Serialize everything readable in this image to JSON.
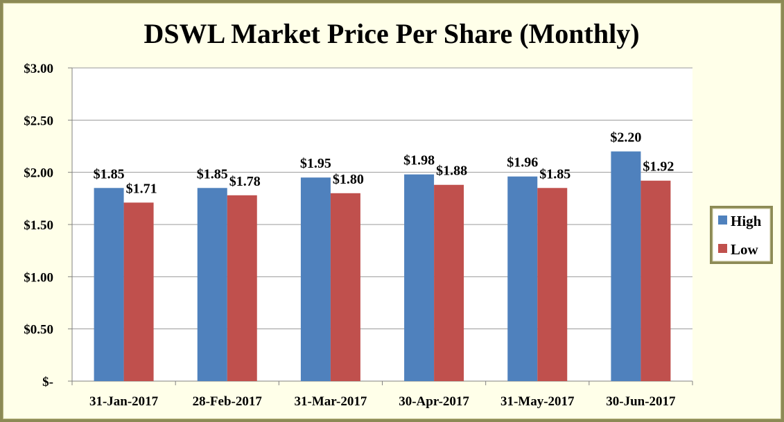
{
  "chart_data": {
    "type": "bar",
    "title": "DSWL Market Price Per Share (Monthly)",
    "xlabel": "",
    "ylabel": "",
    "categories": [
      "31-Jan-2017",
      "28-Feb-2017",
      "31-Mar-2017",
      "30-Apr-2017",
      "31-May-2017",
      "30-Jun-2017"
    ],
    "series": [
      {
        "name": "High",
        "color": "#4F81BD",
        "values": [
          1.85,
          1.85,
          1.95,
          1.98,
          1.96,
          2.2
        ],
        "labels": [
          "$1.85",
          "$1.85",
          "$1.95",
          "$1.98",
          "$1.96",
          "$2.20"
        ]
      },
      {
        "name": "Low",
        "color": "#C0504D",
        "values": [
          1.71,
          1.78,
          1.8,
          1.88,
          1.85,
          1.92
        ],
        "labels": [
          "$1.71",
          "$1.78",
          "$1.80",
          "$1.88",
          "$1.85",
          "$1.92"
        ]
      }
    ],
    "ylim": [
      0,
      3
    ],
    "yticks": [
      0,
      0.5,
      1,
      1.5,
      2,
      2.5,
      3
    ],
    "ytick_labels": [
      "$-",
      "$0.50",
      "$1.00",
      "$1.50",
      "$2.00",
      "$2.50",
      "$3.00"
    ],
    "grid": true,
    "legend": "right",
    "plot_background": "#FFFFFF",
    "chart_background": "#FFFFE9"
  }
}
